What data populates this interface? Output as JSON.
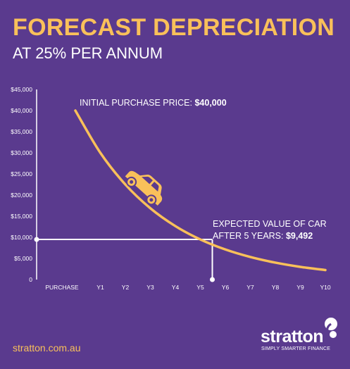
{
  "header": {
    "title": "FORECAST DEPRECIATION",
    "subtitle": "AT 25% PER ANNUM"
  },
  "chart_data": {
    "type": "line",
    "categories": [
      "PURCHASE",
      "Y1",
      "Y2",
      "Y3",
      "Y4",
      "Y5",
      "Y6",
      "Y7",
      "Y8",
      "Y9",
      "Y10"
    ],
    "series": [
      {
        "values": [
          40000,
          30000,
          22500,
          16875,
          12656,
          9492,
          7119,
          5339,
          4005,
          3003,
          2253
        ]
      }
    ],
    "ylim": [
      0,
      45000
    ],
    "yticks": [
      0,
      5000,
      10000,
      15000,
      20000,
      25000,
      30000,
      35000,
      40000,
      45000
    ],
    "ytick_labels": [
      "0",
      "$5,000",
      "$10,000",
      "$15,000",
      "$20,000",
      "$25,000",
      "$30,000",
      "$35,000",
      "$40,000",
      "$45,000"
    ],
    "grid": false,
    "annotations": {
      "initial": {
        "prefix": "INITIAL PURCHASE PRICE: ",
        "value": "$40,000"
      },
      "expected": {
        "line1": "EXPECTED VALUE OF CAR",
        "line2_prefix": "AFTER 5 YEARS: ",
        "line2_value": "$9,492"
      }
    },
    "colors": {
      "line": "#f9c05a",
      "axis": "#ffffff",
      "text": "#ffffff",
      "background": "#5a3a8e"
    },
    "icon": "car-icon"
  },
  "footer": {
    "url": "stratton.com.au",
    "brand": "stratton",
    "tagline": "SIMPLY SMARTER FINANCE"
  }
}
